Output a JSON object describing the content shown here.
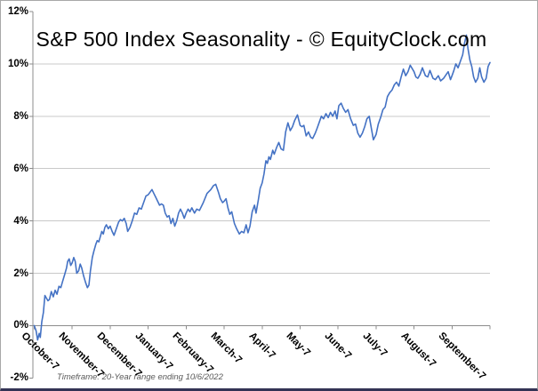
{
  "chart_data": {
    "type": "line",
    "title": "S&P 500 Index Seasonality - © EquityClock.com",
    "note": "Timeframe: 20-Year range ending 10/6/2022",
    "x_tick_labels": [
      "October-7",
      "November-7",
      "December-7",
      "January-7",
      "February-7",
      "March-7",
      "April-7",
      "May-7",
      "June-7",
      "July-7",
      "August-7",
      "September-7"
    ],
    "y_tick_labels": [
      "12%",
      "10%",
      "8%",
      "6%",
      "4%",
      "2%",
      "0%",
      "-2%"
    ],
    "ylim": [
      -2,
      12
    ],
    "y_step": 2,
    "x_unit": "months (Oct 7 through Sep 7, 12 months)",
    "grid": "horizontal-only",
    "legend": "none",
    "colors": {
      "line": "#4472C4",
      "grid": "#c9c9c9",
      "axis": "#8c8c8c",
      "title_text": "#000000",
      "note_text": "#595959"
    },
    "series": [
      {
        "points": [
          [
            0,
            0.0
          ],
          [
            0.05,
            -0.2
          ],
          [
            0.09,
            -0.55
          ],
          [
            0.13,
            -0.3
          ],
          [
            0.16,
            -0.45
          ],
          [
            0.2,
            0.15
          ],
          [
            0.24,
            0.5
          ],
          [
            0.28,
            1.15
          ],
          [
            0.32,
            1.05
          ],
          [
            0.36,
            0.95
          ],
          [
            0.4,
            1.0
          ],
          [
            0.45,
            1.3
          ],
          [
            0.5,
            1.1
          ],
          [
            0.55,
            1.35
          ],
          [
            0.6,
            1.2
          ],
          [
            0.65,
            1.5
          ],
          [
            0.7,
            1.45
          ],
          [
            0.75,
            1.7
          ],
          [
            0.8,
            1.95
          ],
          [
            0.85,
            2.2
          ],
          [
            0.88,
            2.45
          ],
          [
            0.92,
            2.55
          ],
          [
            0.96,
            2.3
          ],
          [
            1.0,
            2.4
          ],
          [
            1.04,
            2.6
          ],
          [
            1.08,
            2.45
          ],
          [
            1.12,
            2.0
          ],
          [
            1.17,
            2.1
          ],
          [
            1.21,
            2.35
          ],
          [
            1.25,
            2.2
          ],
          [
            1.3,
            1.9
          ],
          [
            1.35,
            1.65
          ],
          [
            1.4,
            1.45
          ],
          [
            1.44,
            1.55
          ],
          [
            1.48,
            2.1
          ],
          [
            1.53,
            2.6
          ],
          [
            1.57,
            2.85
          ],
          [
            1.62,
            3.1
          ],
          [
            1.66,
            3.25
          ],
          [
            1.7,
            3.2
          ],
          [
            1.74,
            3.4
          ],
          [
            1.78,
            3.6
          ],
          [
            1.82,
            3.5
          ],
          [
            1.86,
            3.75
          ],
          [
            1.9,
            3.85
          ],
          [
            1.95,
            3.7
          ],
          [
            2.0,
            3.8
          ],
          [
            2.05,
            3.6
          ],
          [
            2.1,
            3.45
          ],
          [
            2.16,
            3.7
          ],
          [
            2.22,
            3.95
          ],
          [
            2.27,
            4.05
          ],
          [
            2.32,
            4.0
          ],
          [
            2.37,
            4.1
          ],
          [
            2.42,
            3.9
          ],
          [
            2.46,
            3.6
          ],
          [
            2.52,
            3.75
          ],
          [
            2.58,
            4.0
          ],
          [
            2.64,
            4.3
          ],
          [
            2.7,
            4.25
          ],
          [
            2.76,
            4.5
          ],
          [
            2.82,
            4.45
          ],
          [
            2.88,
            4.7
          ],
          [
            2.94,
            4.95
          ],
          [
            3.0,
            5.0
          ],
          [
            3.05,
            5.1
          ],
          [
            3.1,
            5.2
          ],
          [
            3.15,
            5.05
          ],
          [
            3.2,
            4.9
          ],
          [
            3.25,
            4.75
          ],
          [
            3.3,
            4.6
          ],
          [
            3.35,
            4.65
          ],
          [
            3.4,
            4.6
          ],
          [
            3.45,
            4.3
          ],
          [
            3.5,
            4.15
          ],
          [
            3.55,
            4.2
          ],
          [
            3.6,
            3.9
          ],
          [
            3.65,
            4.1
          ],
          [
            3.7,
            3.8
          ],
          [
            3.75,
            4.0
          ],
          [
            3.8,
            4.3
          ],
          [
            3.85,
            4.45
          ],
          [
            3.9,
            4.3
          ],
          [
            3.95,
            4.1
          ],
          [
            4.0,
            4.3
          ],
          [
            4.05,
            4.45
          ],
          [
            4.1,
            4.35
          ],
          [
            4.15,
            4.5
          ],
          [
            4.22,
            4.3
          ],
          [
            4.28,
            4.45
          ],
          [
            4.35,
            4.4
          ],
          [
            4.45,
            4.7
          ],
          [
            4.55,
            5.05
          ],
          [
            4.65,
            5.2
          ],
          [
            4.72,
            5.35
          ],
          [
            4.78,
            5.4
          ],
          [
            4.85,
            5.1
          ],
          [
            4.9,
            4.85
          ],
          [
            4.96,
            4.7
          ],
          [
            5.0,
            4.75
          ],
          [
            5.05,
            4.85
          ],
          [
            5.1,
            4.5
          ],
          [
            5.15,
            4.25
          ],
          [
            5.2,
            4.35
          ],
          [
            5.27,
            3.9
          ],
          [
            5.33,
            3.7
          ],
          [
            5.4,
            3.5
          ],
          [
            5.46,
            3.6
          ],
          [
            5.52,
            3.55
          ],
          [
            5.58,
            3.85
          ],
          [
            5.63,
            3.55
          ],
          [
            5.68,
            3.8
          ],
          [
            5.74,
            4.35
          ],
          [
            5.8,
            4.6
          ],
          [
            5.84,
            4.3
          ],
          [
            5.9,
            4.8
          ],
          [
            5.95,
            5.25
          ],
          [
            6.0,
            5.45
          ],
          [
            6.05,
            5.8
          ],
          [
            6.1,
            6.3
          ],
          [
            6.14,
            6.2
          ],
          [
            6.18,
            6.45
          ],
          [
            6.22,
            6.35
          ],
          [
            6.28,
            6.7
          ],
          [
            6.32,
            6.55
          ],
          [
            6.38,
            6.8
          ],
          [
            6.44,
            7.0
          ],
          [
            6.5,
            6.75
          ],
          [
            6.56,
            6.7
          ],
          [
            6.62,
            7.4
          ],
          [
            6.68,
            7.75
          ],
          [
            6.74,
            7.45
          ],
          [
            6.8,
            7.6
          ],
          [
            6.86,
            7.85
          ],
          [
            6.93,
            8.05
          ],
          [
            7.0,
            7.65
          ],
          [
            7.05,
            7.6
          ],
          [
            7.1,
            7.65
          ],
          [
            7.16,
            7.25
          ],
          [
            7.22,
            7.4
          ],
          [
            7.28,
            7.2
          ],
          [
            7.33,
            7.15
          ],
          [
            7.4,
            7.35
          ],
          [
            7.45,
            7.55
          ],
          [
            7.5,
            7.75
          ],
          [
            7.56,
            8.0
          ],
          [
            7.62,
            7.9
          ],
          [
            7.68,
            8.1
          ],
          [
            7.74,
            7.95
          ],
          [
            7.8,
            8.15
          ],
          [
            7.86,
            8.0
          ],
          [
            7.92,
            8.2
          ],
          [
            7.97,
            7.9
          ],
          [
            8.02,
            8.4
          ],
          [
            8.08,
            8.5
          ],
          [
            8.14,
            8.3
          ],
          [
            8.2,
            8.15
          ],
          [
            8.26,
            8.25
          ],
          [
            8.33,
            7.9
          ],
          [
            8.4,
            7.65
          ],
          [
            8.46,
            7.7
          ],
          [
            8.52,
            7.35
          ],
          [
            8.58,
            7.2
          ],
          [
            8.64,
            7.35
          ],
          [
            8.7,
            7.6
          ],
          [
            8.76,
            7.9
          ],
          [
            8.82,
            8.0
          ],
          [
            8.88,
            7.5
          ],
          [
            8.93,
            7.1
          ],
          [
            9.0,
            7.3
          ],
          [
            9.06,
            7.7
          ],
          [
            9.12,
            7.95
          ],
          [
            9.18,
            8.25
          ],
          [
            9.24,
            8.35
          ],
          [
            9.3,
            8.75
          ],
          [
            9.36,
            8.9
          ],
          [
            9.42,
            9.0
          ],
          [
            9.48,
            9.2
          ],
          [
            9.54,
            9.3
          ],
          [
            9.6,
            9.15
          ],
          [
            9.66,
            9.5
          ],
          [
            9.72,
            9.8
          ],
          [
            9.78,
            9.55
          ],
          [
            9.84,
            9.7
          ],
          [
            9.9,
            9.95
          ],
          [
            9.96,
            9.8
          ],
          [
            10.0,
            9.7
          ],
          [
            10.05,
            9.5
          ],
          [
            10.1,
            9.45
          ],
          [
            10.16,
            9.6
          ],
          [
            10.22,
            9.85
          ],
          [
            10.3,
            9.55
          ],
          [
            10.36,
            9.5
          ],
          [
            10.42,
            9.75
          ],
          [
            10.5,
            9.45
          ],
          [
            10.56,
            9.4
          ],
          [
            10.64,
            9.55
          ],
          [
            10.7,
            9.35
          ],
          [
            10.78,
            9.45
          ],
          [
            10.85,
            9.6
          ],
          [
            10.9,
            9.7
          ],
          [
            10.96,
            9.4
          ],
          [
            11.0,
            9.55
          ],
          [
            11.05,
            9.75
          ],
          [
            11.1,
            10.0
          ],
          [
            11.16,
            9.85
          ],
          [
            11.22,
            10.1
          ],
          [
            11.28,
            10.35
          ],
          [
            11.33,
            10.8
          ],
          [
            11.38,
            11.1
          ],
          [
            11.42,
            10.6
          ],
          [
            11.47,
            10.15
          ],
          [
            11.52,
            9.9
          ],
          [
            11.57,
            9.5
          ],
          [
            11.62,
            9.3
          ],
          [
            11.68,
            9.45
          ],
          [
            11.73,
            9.85
          ],
          [
            11.78,
            9.5
          ],
          [
            11.84,
            9.3
          ],
          [
            11.9,
            9.45
          ],
          [
            11.95,
            9.9
          ],
          [
            12.0,
            10.05
          ]
        ]
      }
    ]
  }
}
